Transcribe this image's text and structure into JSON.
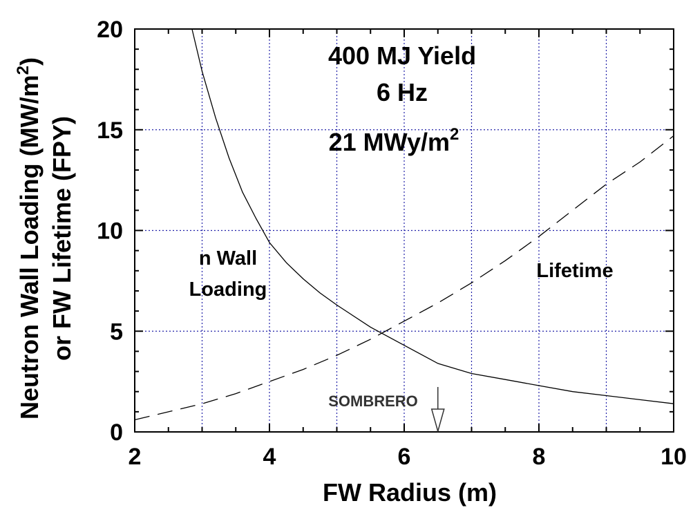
{
  "chart_data": {
    "type": "line",
    "xlabel": "FW Radius (m)",
    "ylabel_line1": "Neutron Wall Loading (MW/m",
    "ylabel_line1_sup": "2",
    "ylabel_line1_end": ")",
    "ylabel_line2": "or FW Lifetime (FPY)",
    "xlim": [
      2,
      10
    ],
    "ylim": [
      0,
      20
    ],
    "xticks": [
      2,
      4,
      6,
      8,
      10
    ],
    "yticks": [
      0,
      5,
      10,
      15,
      20
    ],
    "grid": true,
    "grid_color": "#1f1fa8",
    "annotations": {
      "yield": "400 MJ Yield",
      "rate": "6 Hz",
      "fluence_main": "21 MWy/m",
      "fluence_sup": "2",
      "n_wall_1": "n Wall",
      "n_wall_2": "Loading",
      "lifetime": "Lifetime",
      "sombrero": "SOMBRERO",
      "sombrero_x": 6.5
    },
    "series": [
      {
        "style": "solid",
        "x": [
          2.85,
          3.0,
          3.2,
          3.4,
          3.6,
          3.8,
          4.0,
          4.25,
          4.5,
          4.75,
          5.0,
          5.5,
          6.0,
          6.5,
          7.0,
          7.5,
          8.0,
          8.5,
          9.0,
          9.5,
          10.0
        ],
        "y": [
          20.0,
          17.9,
          15.6,
          13.6,
          11.9,
          10.6,
          9.4,
          8.4,
          7.6,
          6.9,
          6.3,
          5.2,
          4.3,
          3.4,
          2.9,
          2.6,
          2.3,
          2.0,
          1.8,
          1.6,
          1.4
        ]
      },
      {
        "style": "dashed",
        "x": [
          2.0,
          2.5,
          3.0,
          3.5,
          4.0,
          4.5,
          5.0,
          5.5,
          6.0,
          6.5,
          7.0,
          7.5,
          8.0,
          8.5,
          9.0,
          9.5,
          10.0
        ],
        "y": [
          0.6,
          1.0,
          1.4,
          1.9,
          2.5,
          3.1,
          3.8,
          4.6,
          5.5,
          6.4,
          7.4,
          8.5,
          9.7,
          11.0,
          12.3,
          13.4,
          14.7
        ]
      }
    ]
  }
}
